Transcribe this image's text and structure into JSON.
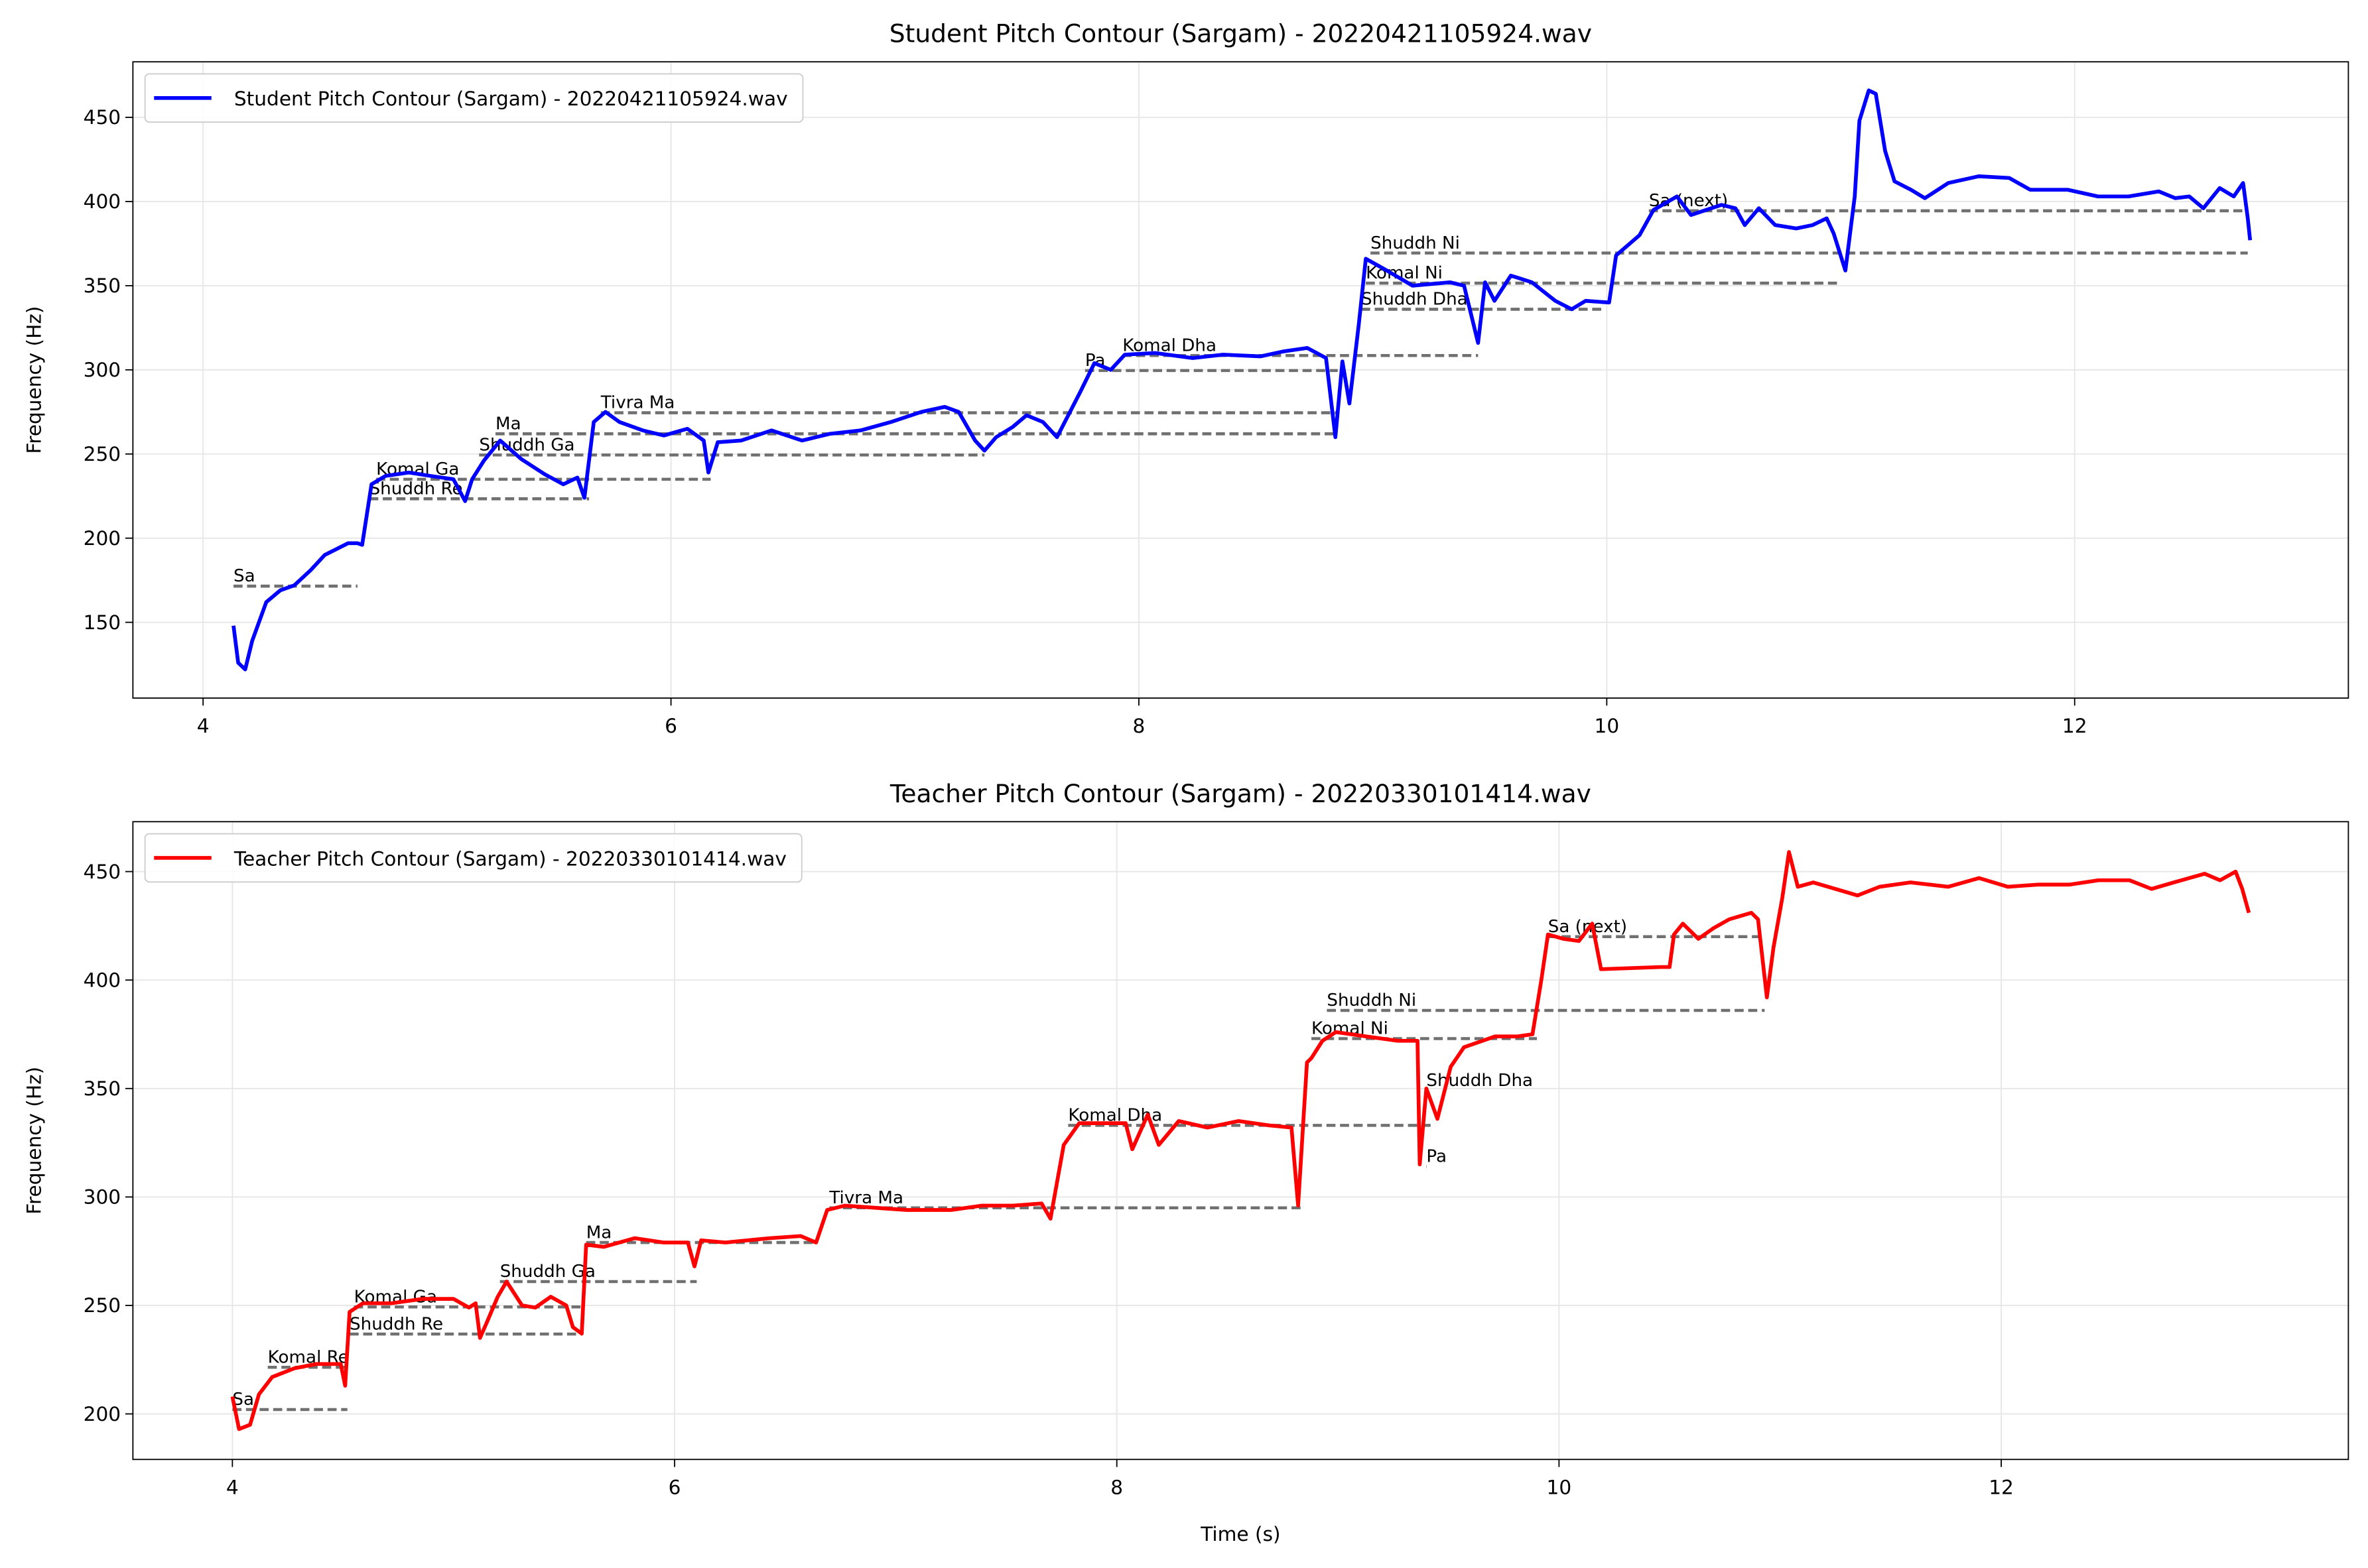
{
  "chart_data": [
    {
      "type": "line",
      "title": "Student Pitch Contour (Sargam) - 20220421105924.wav",
      "ylabel": "Frequency (Hz)",
      "xlim": [
        3.7,
        13.17
      ],
      "ylim": [
        105,
        483
      ],
      "xticks": [
        4,
        6,
        8,
        10,
        12
      ],
      "yticks": [
        150,
        200,
        250,
        300,
        350,
        400,
        450
      ],
      "grid": true,
      "legend": "upper left",
      "series": [
        {
          "name": "Student Pitch Contour (Sargam) - 20220421105924.wav",
          "color": "#0000ff",
          "x": [
            4.13,
            4.15,
            4.18,
            4.21,
            4.27,
            4.33,
            4.39,
            4.46,
            4.52,
            4.62,
            4.66,
            4.68,
            4.72,
            4.78,
            4.88,
            4.97,
            5.07,
            5.12,
            5.15,
            5.2,
            5.27,
            5.36,
            5.46,
            5.54,
            5.6,
            5.63,
            5.67,
            5.72,
            5.78,
            5.88,
            5.97,
            6.07,
            6.14,
            6.16,
            6.2,
            6.3,
            6.43,
            6.56,
            6.68,
            6.81,
            6.94,
            7.07,
            7.17,
            7.23,
            7.3,
            7.34,
            7.39,
            7.46,
            7.52,
            7.59,
            7.65,
            7.75,
            7.81,
            7.88,
            7.94,
            8.07,
            8.23,
            8.36,
            8.52,
            8.62,
            8.72,
            8.8,
            8.84,
            8.87,
            8.9,
            8.94,
            8.97,
            9.06,
            9.17,
            9.33,
            9.39,
            9.45,
            9.48,
            9.52,
            9.59,
            9.68,
            9.78,
            9.85,
            9.91,
            10.01,
            10.04,
            10.14,
            10.2,
            10.3,
            10.36,
            10.49,
            10.55,
            10.59,
            10.65,
            10.72,
            10.81,
            10.88,
            10.94,
            10.97,
            11.02,
            11.06,
            11.08,
            11.12,
            11.15,
            11.19,
            11.23,
            11.3,
            11.36,
            11.46,
            11.59,
            11.72,
            11.81,
            11.97,
            12.1,
            12.23,
            12.36,
            12.43,
            12.49,
            12.55,
            12.62,
            12.68,
            12.72,
            12.74,
            12.75
          ],
          "values": [
            148,
            126,
            122,
            139,
            162,
            169,
            172,
            181,
            190,
            197,
            197,
            196,
            232,
            237,
            239,
            237,
            235,
            222,
            235,
            246,
            258,
            247,
            238,
            232,
            236,
            224,
            269,
            275,
            269,
            264,
            261,
            265,
            258,
            239,
            257,
            258,
            264,
            258,
            262,
            264,
            269,
            275,
            278,
            275,
            258,
            252,
            260,
            266,
            273,
            269,
            260,
            287,
            304,
            300,
            309,
            310,
            307,
            309,
            308,
            311,
            313,
            307,
            260,
            305,
            280,
            327,
            366,
            359,
            350,
            352,
            350,
            316,
            352,
            341,
            356,
            352,
            341,
            336,
            341,
            340,
            368,
            380,
            395,
            403,
            392,
            398,
            396,
            386,
            396,
            386,
            384,
            386,
            390,
            381,
            359,
            403,
            448,
            466,
            464,
            430,
            412,
            407,
            402,
            411,
            415,
            414,
            407,
            407,
            403,
            403,
            406,
            402,
            403,
            396,
            408,
            403,
            411,
            390,
            377
          ]
        }
      ],
      "reference_lines": [
        {
          "label": "Sa",
          "y": 171.5,
          "x": [
            4.13,
            4.66
          ]
        },
        {
          "label": "Shuddh Re",
          "y": 223.4,
          "x": [
            4.71,
            5.65
          ]
        },
        {
          "label": "Komal Ga",
          "y": 235,
          "x": [
            4.74,
            6.17
          ]
        },
        {
          "label": "Shuddh Ga",
          "y": 249.4,
          "x": [
            5.18,
            7.34
          ]
        },
        {
          "label": "Ma",
          "y": 262,
          "x": [
            5.25,
            8.85
          ]
        },
        {
          "label": "Tivra Ma",
          "y": 274.5,
          "x": [
            5.7,
            8.85
          ]
        },
        {
          "label": "Pa",
          "y": 299.6,
          "x": [
            7.77,
            8.85
          ]
        },
        {
          "label": "Komal Dha",
          "y": 308.5,
          "x": [
            7.93,
            9.45
          ]
        },
        {
          "label": "Shuddh Dha",
          "y": 336,
          "x": [
            8.95,
            9.99
          ]
        },
        {
          "label": "Komal Ni",
          "y": 351.5,
          "x": [
            8.97,
            10.99
          ]
        },
        {
          "label": "Shuddh Ni",
          "y": 369.4,
          "x": [
            8.99,
            12.74
          ]
        },
        {
          "label": "Sa (next)",
          "y": 394.5,
          "x": [
            10.18,
            12.74
          ]
        }
      ]
    },
    {
      "type": "line",
      "title": "Teacher Pitch Contour (Sargam) - 20220330101414.wav",
      "xlabel": "Time (s)",
      "ylabel": "Frequency (Hz)",
      "xlim": [
        3.55,
        13.57
      ],
      "ylim": [
        179,
        473
      ],
      "xticks": [
        4,
        6,
        8,
        10,
        12
      ],
      "yticks": [
        200,
        250,
        300,
        350,
        400,
        450
      ],
      "grid": true,
      "legend": "upper left",
      "series": [
        {
          "name": "Teacher Pitch Contour (Sargam) - 20220330101414.wav",
          "color": "#ff0000",
          "x": [
            4.0,
            4.03,
            4.08,
            4.12,
            4.18,
            4.28,
            4.38,
            4.49,
            4.51,
            4.53,
            4.59,
            4.72,
            4.86,
            5.0,
            5.07,
            5.1,
            5.12,
            5.15,
            5.2,
            5.24,
            5.31,
            5.37,
            5.44,
            5.51,
            5.54,
            5.58,
            5.6,
            5.68,
            5.82,
            5.95,
            6.06,
            6.09,
            6.12,
            6.23,
            6.43,
            6.57,
            6.64,
            6.69,
            6.77,
            6.91,
            7.05,
            7.25,
            7.39,
            7.53,
            7.66,
            7.7,
            7.76,
            7.83,
            7.93,
            8.04,
            8.07,
            8.14,
            8.19,
            8.28,
            8.41,
            8.55,
            8.69,
            8.79,
            8.82,
            8.86,
            8.88,
            8.93,
            8.99,
            9.13,
            9.27,
            9.36,
            9.37,
            9.4,
            9.45,
            9.51,
            9.57,
            9.71,
            9.81,
            9.88,
            9.92,
            9.95,
            10.02,
            10.09,
            10.15,
            10.19,
            10.46,
            10.5,
            10.52,
            10.56,
            10.63,
            10.7,
            10.77,
            10.87,
            10.9,
            10.94,
            10.97,
            11.01,
            11.04,
            11.08,
            11.15,
            11.25,
            11.35,
            11.45,
            11.59,
            11.76,
            11.9,
            12.03,
            12.17,
            12.31,
            12.44,
            12.58,
            12.68,
            12.78,
            12.92,
            12.99,
            13.06,
            13.09,
            13.12
          ],
          "values": [
            208,
            193,
            195,
            209,
            217,
            221,
            223,
            223,
            213,
            247,
            251,
            251,
            253,
            253,
            249,
            251,
            235,
            242,
            254,
            261,
            250,
            249,
            254,
            250,
            240,
            237,
            278,
            277,
            281,
            279,
            279,
            268,
            280,
            279,
            281,
            282,
            279,
            294,
            296,
            295,
            294,
            294,
            296,
            296,
            297,
            290,
            324,
            334,
            334,
            334,
            322,
            338,
            324,
            335,
            332,
            335,
            333,
            332,
            296,
            362,
            364,
            372,
            376,
            374,
            372,
            372,
            315,
            350,
            336,
            360,
            369,
            374,
            374,
            375,
            400,
            421,
            419,
            418,
            426,
            405,
            406,
            406,
            421,
            426,
            419,
            424,
            428,
            431,
            428,
            392,
            415,
            438,
            459,
            443,
            445,
            442,
            439,
            443,
            445,
            443,
            447,
            443,
            444,
            444,
            446,
            446,
            442,
            445,
            449,
            446,
            450,
            442,
            431
          ]
        }
      ],
      "reference_lines": [
        {
          "label": "Sa",
          "y": 202,
          "x": [
            4.0,
            4.52
          ]
        },
        {
          "label": "Komal Re",
          "y": 221.5,
          "x": [
            4.16,
            4.52
          ]
        },
        {
          "label": "Shuddh Re",
          "y": 236.8,
          "x": [
            4.53,
            5.58
          ]
        },
        {
          "label": "Komal Ga",
          "y": 249.3,
          "x": [
            4.55,
            5.58
          ]
        },
        {
          "label": "Shuddh Ga",
          "y": 261,
          "x": [
            5.21,
            6.1
          ]
        },
        {
          "label": "Ma",
          "y": 279,
          "x": [
            5.6,
            6.64
          ]
        },
        {
          "label": "Tivra Ma",
          "y": 295,
          "x": [
            6.7,
            8.84
          ]
        },
        {
          "label": "Komal Dha",
          "y": 333,
          "x": [
            7.78,
            9.44
          ]
        },
        {
          "label": "Pa",
          "y": 314,
          "x": [
            9.4,
            9.4
          ]
        },
        {
          "label": "Shuddh Dha",
          "y": 349,
          "x": [
            9.4,
            9.4
          ]
        },
        {
          "label": "Komal Ni",
          "y": 373,
          "x": [
            8.88,
            9.9
          ]
        },
        {
          "label": "Shuddh Ni",
          "y": 386,
          "x": [
            8.95,
            10.93
          ]
        },
        {
          "label": "Sa (next)",
          "y": 420,
          "x": [
            9.95,
            10.93
          ]
        }
      ]
    }
  ]
}
